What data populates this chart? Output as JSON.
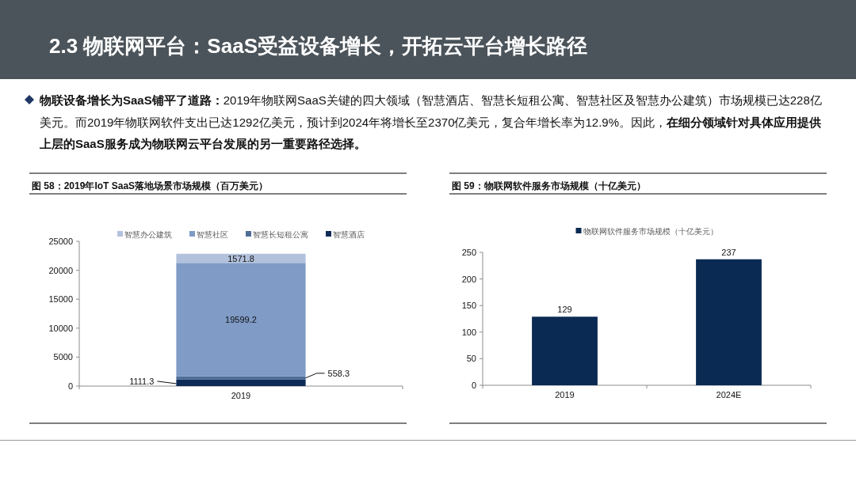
{
  "chart_data": [
    {
      "type": "other",
      "title": "2.3 物联网平台：SaaS受益设备增长，开拓云平台增长路径",
      "annotations": [
        "**物联设备增长为SaaS铺平了道路：**2019年物联网SaaS关键的四大领域（智慧酒店、智慧长短租公寓、智慧社区及智慧办公建筑）市场规模已达228亿美元。而2019年物联网软件支出已达1292亿美元，预计到2024年将增长至2370亿美元，复合年增长率为12.9%。因此，**在细分领域针对具体应用提供上层的SaaS服务成为物联网云平台发展的另一重要路径选择。**"
      ]
    },
    {
      "type": "bar",
      "title": "图 58：2019年IoT SaaS落地场景市场规模（百万美元）",
      "categories": [
        "2019"
      ],
      "stacked": true,
      "series": [
        {
          "name": "智慧酒店",
          "color": "#0d2b56",
          "values": [
            1111.3
          ]
        },
        {
          "name": "智慧长短租公寓",
          "color": "#4e6e98",
          "values": [
            558.3
          ]
        },
        {
          "name": "智慧社区",
          "color": "#7f9bc6",
          "values": [
            19599.2
          ]
        },
        {
          "name": "智慧办公建筑",
          "color": "#b3c2dc",
          "values": [
            1571.8
          ]
        }
      ],
      "ylim": [
        0,
        25000
      ],
      "yticks": [
        0,
        5000,
        10000,
        15000,
        20000,
        25000
      ],
      "legend": "top",
      "data_labels": true
    },
    {
      "type": "bar",
      "title": "图 59：物联网软件服务市场规模（十亿美元）",
      "categories": [
        "2019",
        "2024E"
      ],
      "series": [
        {
          "name": "物联网软件服务市场规模（十亿美元）",
          "color": "#0b2a53",
          "values": [
            129,
            237
          ]
        }
      ],
      "ylim": [
        0,
        250
      ],
      "yticks": [
        0,
        50,
        100,
        150,
        200,
        250
      ],
      "legend": "top",
      "data_labels": true
    }
  ]
}
